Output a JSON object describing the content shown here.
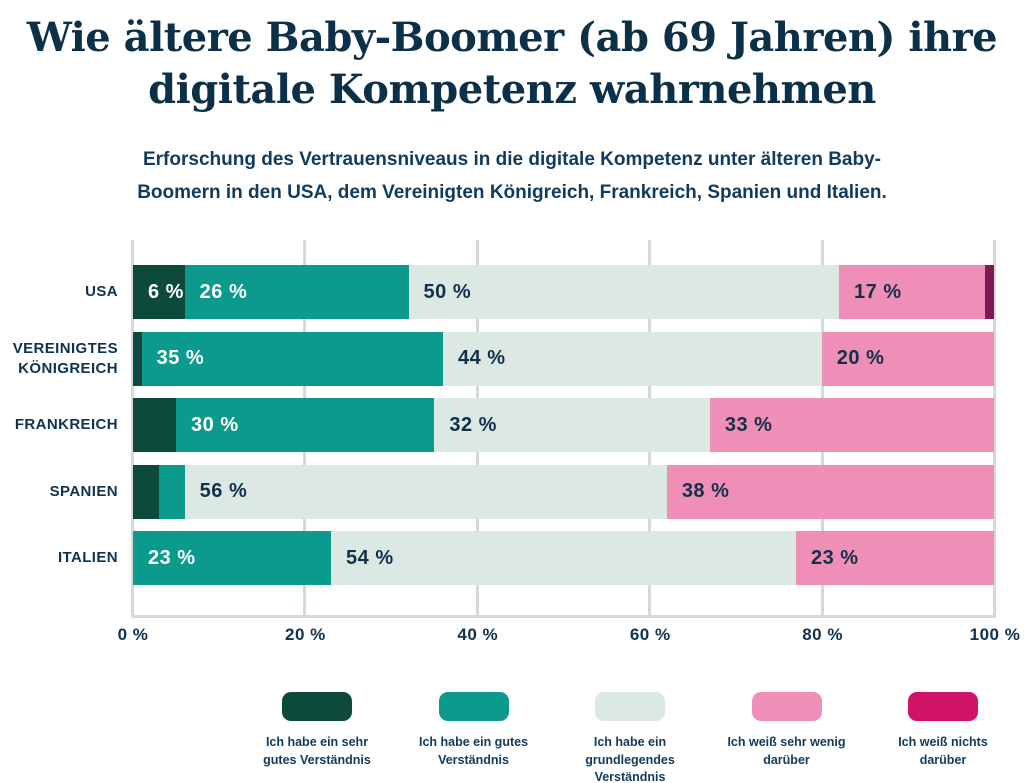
{
  "title": "Wie ältere Baby-Boomer (ab 69 Jahren) ihre\ndigitale Kompetenz wahrnehmen",
  "subtitle": "Erforschung des Vertrauensniveaus in die digitale Kompetenz unter älteren Baby-\nBoomern in den USA, dem Vereinigten Königreich, Frankreich, Spanien und Italien.",
  "colors": {
    "background": "#ffffff",
    "title_text": "#0D3049",
    "body_text": "#113A5C",
    "gridline": "#D4D9D9"
  },
  "chart_data": {
    "type": "bar",
    "orientation": "horizontal",
    "stacked": true,
    "unit": "%",
    "grid": true,
    "legend_position": "bottom",
    "xlim": [
      0,
      100
    ],
    "x_ticks": [
      "0 %",
      "20 %",
      "40 %",
      "60 %",
      "80 %",
      "100 %"
    ],
    "value_label_format": "{v} %",
    "min_value_for_label": 6,
    "categories": [
      "USA",
      "VEREINIGTES KÖNIGREICH",
      "FRANKREICH",
      "SPANIEN",
      "ITALIEN"
    ],
    "series": [
      {
        "name": "Ich habe ein sehr gutes Verständnis",
        "color": "#0E4A3B",
        "label_color": "#FFFFFF",
        "values": [
          6,
          1,
          5,
          3,
          0
        ]
      },
      {
        "name": "Ich habe ein gutes Verständnis",
        "color": "#0B9A8B",
        "label_color": "#FFFFFF",
        "values": [
          26,
          35,
          30,
          3,
          23
        ]
      },
      {
        "name": "Ich habe ein grundlegendes Verständnis",
        "color": "#DBE8E4",
        "label_color": "#13304B",
        "values": [
          50,
          44,
          32,
          56,
          54
        ]
      },
      {
        "name": "Ich weiß sehr wenig darüber",
        "color": "#EF8FB7",
        "label_color": "#13304B",
        "values": [
          17,
          20,
          33,
          38,
          23
        ]
      },
      {
        "name": "Ich weiß nichts darüber",
        "color": "#D01367",
        "bar_color": "#7D1A52",
        "label_color": "#FFFFFF",
        "values": [
          1,
          0,
          0,
          0,
          0
        ]
      }
    ]
  },
  "legend": {
    "items": [
      {
        "label": "Ich habe ein sehr\ngutes Verständnis",
        "color": "#0E4A3B"
      },
      {
        "label": "Ich habe ein gutes\nVerständnis",
        "color": "#0B9A8B"
      },
      {
        "label": "Ich habe ein\ngrundlegendes\nVerständnis",
        "color": "#DBE8E4"
      },
      {
        "label": "Ich weiß sehr wenig\ndarüber",
        "color": "#EF8FB7"
      },
      {
        "label": "Ich weiß nichts\ndarüber",
        "color": "#D01367"
      }
    ]
  }
}
